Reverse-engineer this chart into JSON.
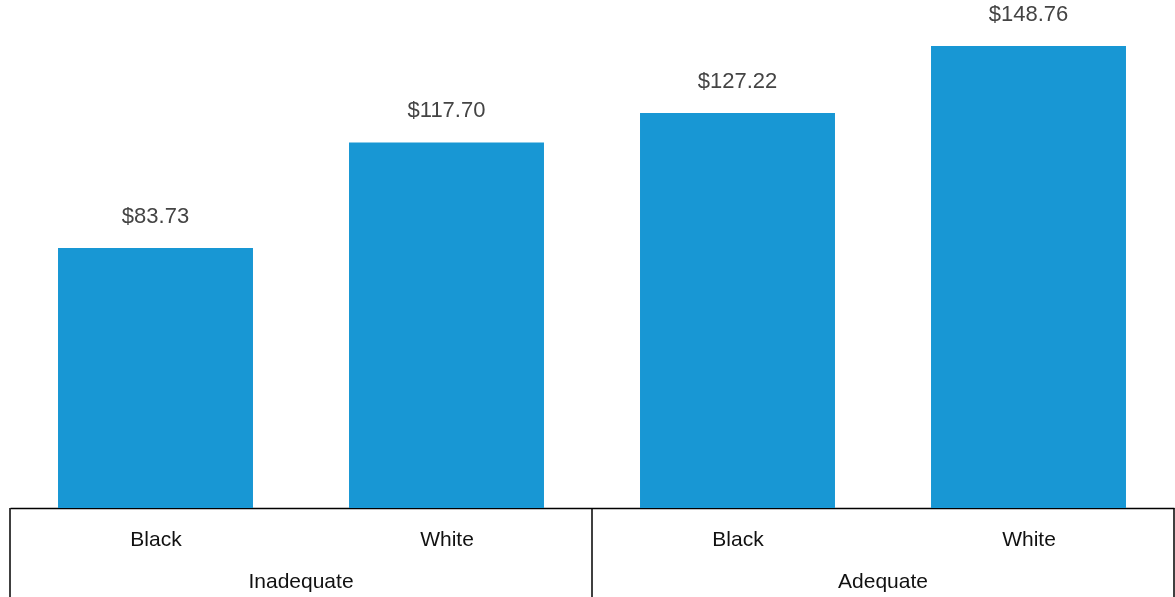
{
  "chart_data": {
    "type": "bar",
    "categories": [
      "Black",
      "White",
      "Black",
      "White"
    ],
    "values": [
      83.73,
      117.7,
      127.22,
      148.76
    ],
    "value_labels": [
      "$83.73",
      "$117.70",
      "$127.22",
      "$148.76"
    ],
    "color": "#1897d4",
    "annotations": [
      "Inadequate",
      "Adequate"
    ],
    "grid": false
  }
}
